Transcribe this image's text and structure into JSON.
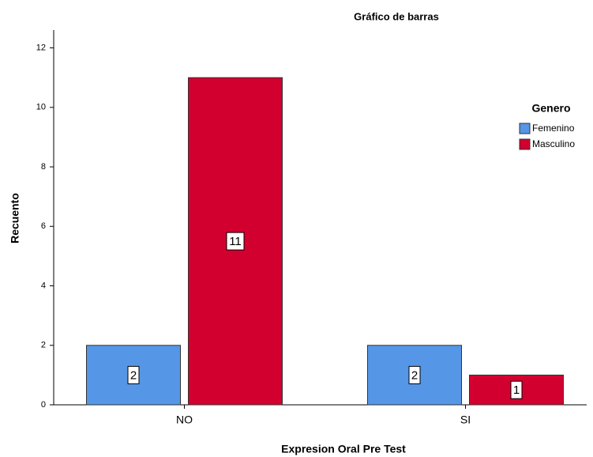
{
  "chart_data": {
    "type": "bar",
    "title": "Gráfico de barras",
    "x_label": "Expresion Oral  Pre Test",
    "y_label": "Recuento",
    "legend_title": "Genero",
    "categories": [
      "NO",
      "SI"
    ],
    "series": [
      {
        "name": "Femenino",
        "color": "#5596e6",
        "values": [
          2,
          2
        ]
      },
      {
        "name": "Masculino",
        "color": "#d2002f",
        "values": [
          11,
          1
        ]
      }
    ],
    "ylim": [
      0,
      12.6
    ],
    "yticks": [
      0,
      2,
      4,
      6,
      8,
      10,
      12
    ],
    "data_labels": true,
    "legend": "right"
  }
}
